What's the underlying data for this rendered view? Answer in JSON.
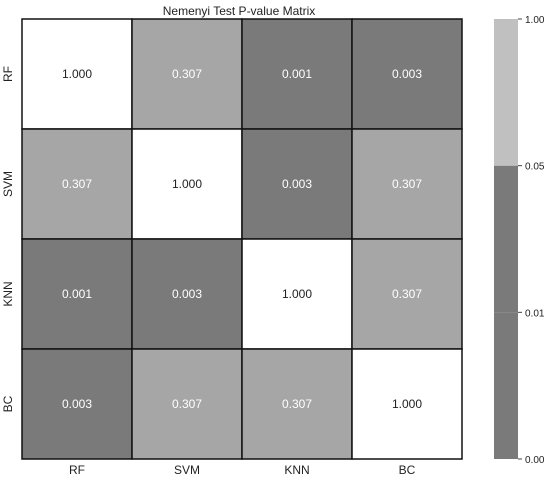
{
  "chart_data": {
    "type": "heatmap",
    "title": "Nemenyi Test P-value Matrix",
    "xlabel": "",
    "ylabel": "",
    "rows": [
      "RF",
      "SVM",
      "KNN",
      "BC"
    ],
    "columns": [
      "RF",
      "SVM",
      "KNN",
      "BC"
    ],
    "values": [
      [
        1.0,
        0.307,
        0.001,
        0.003
      ],
      [
        0.307,
        1.0,
        0.003,
        0.307
      ],
      [
        0.001,
        0.003,
        1.0,
        0.307
      ],
      [
        0.003,
        0.307,
        0.307,
        1.0
      ]
    ],
    "value_format_decimals": 3,
    "colorbar": {
      "ticks": [
        "0.00",
        "0.01",
        "0.05",
        "1.00"
      ],
      "boundaries": [
        0.0,
        0.01,
        0.05,
        1.0
      ],
      "colors": [
        "#7a7a7a",
        "#7a7a7a",
        "#c0c0c0"
      ]
    },
    "cell_colors": {
      "diagonal": "#ffffff",
      "significant_low": "#7a7a7a",
      "not_significant": "#a6a6a6"
    },
    "grid": false
  }
}
